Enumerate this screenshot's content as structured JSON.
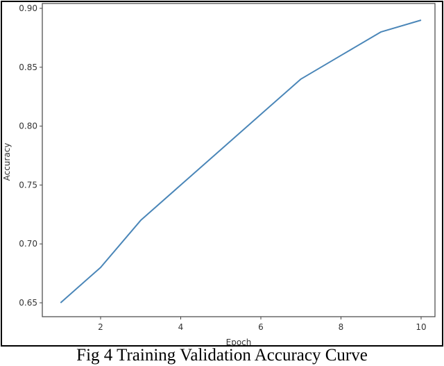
{
  "caption": "Fig 4 Training Validation Accuracy Curve",
  "chart_data": {
    "type": "line",
    "title": "",
    "xlabel": "Epoch",
    "ylabel": "Accuracy",
    "x": [
      1,
      2,
      3,
      4,
      5,
      6,
      7,
      8,
      9,
      10
    ],
    "series": [
      {
        "name": "Validation Accuracy",
        "color": "#4a86b8",
        "values": [
          0.65,
          0.68,
          0.72,
          0.75,
          0.78,
          0.81,
          0.84,
          0.86,
          0.88,
          0.89
        ]
      }
    ],
    "xticks": [
      2,
      4,
      6,
      8,
      10
    ],
    "yticks": [
      0.65,
      0.7,
      0.75,
      0.8,
      0.85,
      0.9
    ],
    "ytick_labels": [
      "0.65",
      "0.70",
      "0.75",
      "0.80",
      "0.85",
      "0.90"
    ],
    "xlim": [
      0.55,
      10.45
    ],
    "ylim": [
      0.638,
      0.902
    ],
    "grid": false,
    "legend": "none"
  }
}
